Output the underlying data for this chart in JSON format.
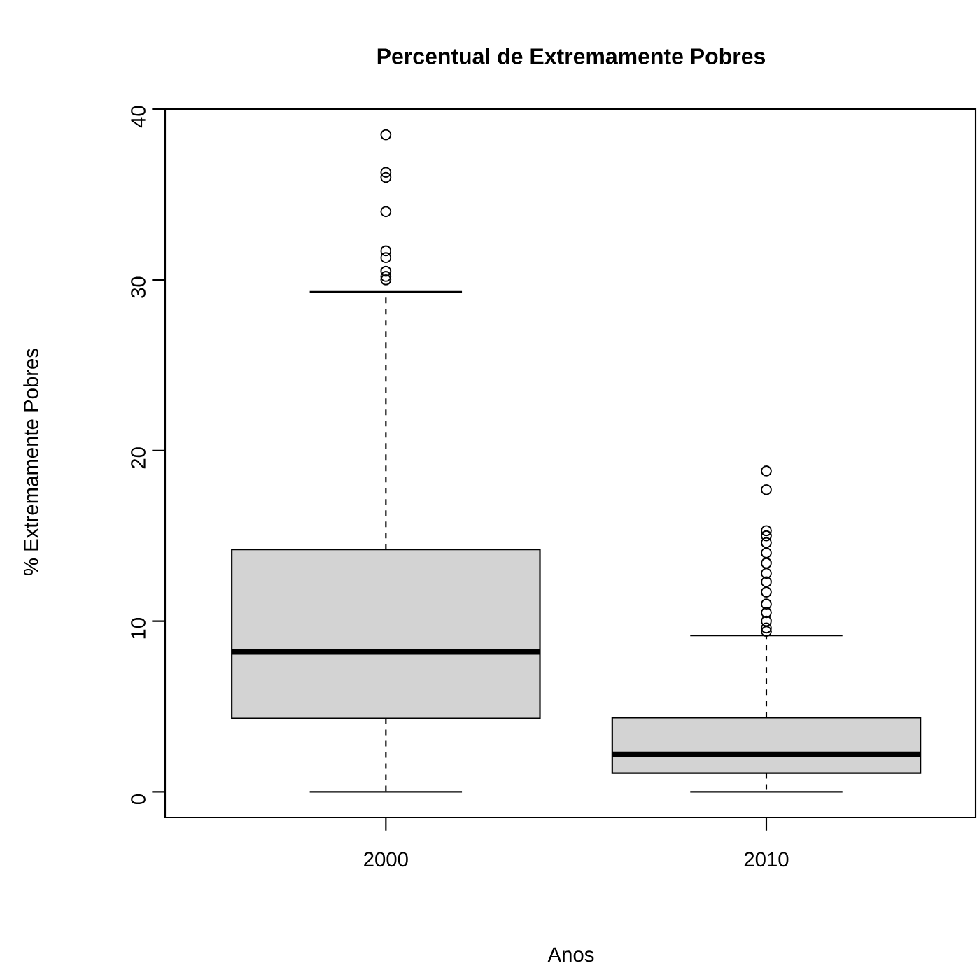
{
  "chart_data": {
    "type": "box",
    "title": "Percentual de Extremamente Pobres",
    "xlabel": "Anos",
    "ylabel": "% Extremamente Pobres",
    "categories": [
      "2000",
      "2010"
    ],
    "color": "#d3d3d3",
    "boxes": [
      {
        "low": 0,
        "q1": 4.3,
        "median": 8.2,
        "q3": 14.2,
        "high": 29.3,
        "outliers": [
          30.0,
          30.2,
          30.5,
          31.3,
          31.7,
          34.0,
          36.0,
          36.3,
          38.5
        ]
      },
      {
        "low": 0,
        "q1": 1.1,
        "median": 2.2,
        "q3": 4.35,
        "high": 9.15,
        "outliers": [
          9.4,
          9.6,
          10.0,
          10.5,
          11.0,
          11.7,
          12.3,
          12.8,
          13.4,
          14.0,
          14.6,
          15.0,
          15.3,
          17.7,
          18.8
        ]
      }
    ],
    "ylim": [
      -1.5,
      40
    ],
    "yticks": [
      0,
      10,
      20,
      30,
      40
    ]
  }
}
